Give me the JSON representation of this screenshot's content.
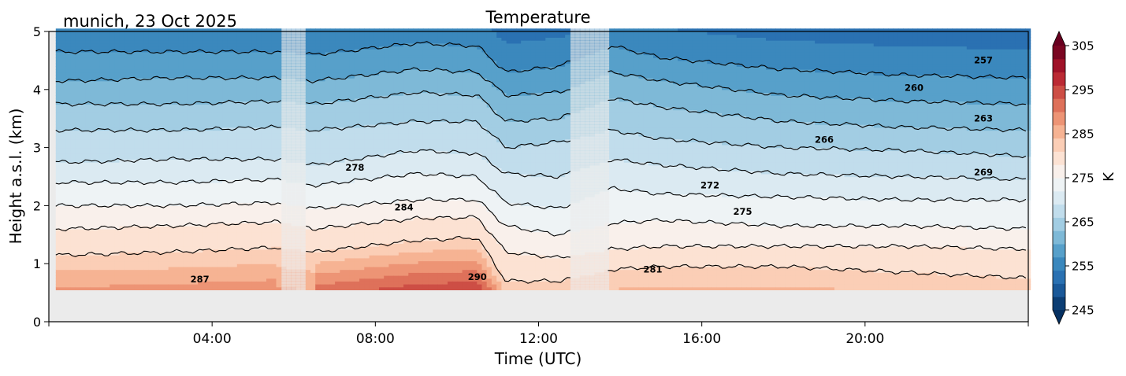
{
  "chart_data": {
    "type": "heatmap",
    "subtype": "filled-contour time-height cross section",
    "title": "Temperature",
    "subtitle": "munich, 23 Oct 2025",
    "xlabel": "Time (UTC)",
    "ylabel": "Height a.s.l. (km)",
    "x_ticks": [
      "04:00",
      "08:00",
      "12:00",
      "16:00",
      "20:00"
    ],
    "x_tick_hours": [
      4,
      8,
      12,
      16,
      20
    ],
    "xlim_hours": [
      0,
      24
    ],
    "y_ticks": [
      0,
      1,
      2,
      3,
      4,
      5
    ],
    "ylim": [
      0,
      5
    ],
    "data_bottom_km": 0.55,
    "missing_data_hours": [
      [
        5.7,
        6.3
      ],
      [
        12.8,
        13.7
      ]
    ],
    "colorbar": {
      "label": "K",
      "ticks": [
        245,
        255,
        265,
        275,
        285,
        295,
        305
      ],
      "vmin": 245,
      "vmax": 305,
      "level_step": 3,
      "colormap": "RdBu_r",
      "extend": "both"
    },
    "contour_levels": [
      257,
      260,
      263,
      266,
      269,
      272,
      275,
      278,
      281,
      284,
      287,
      290
    ],
    "contour_labels": [
      {
        "value": 257,
        "hour": 22.9,
        "km": 4.45
      },
      {
        "value": 260,
        "hour": 21.2,
        "km": 3.98
      },
      {
        "value": 263,
        "hour": 22.9,
        "km": 3.45
      },
      {
        "value": 266,
        "hour": 19.0,
        "km": 3.08
      },
      {
        "value": 269,
        "hour": 22.9,
        "km": 2.52
      },
      {
        "value": 272,
        "hour": 16.2,
        "km": 2.3
      },
      {
        "value": 275,
        "hour": 17.0,
        "km": 1.84
      },
      {
        "value": 278,
        "hour": 7.5,
        "km": 2.6
      },
      {
        "value": 281,
        "hour": 14.8,
        "km": 0.85
      },
      {
        "value": 284,
        "hour": 8.7,
        "km": 1.92
      },
      {
        "value": 287,
        "hour": 3.7,
        "km": 0.68
      },
      {
        "value": 290,
        "hour": 10.5,
        "km": 0.72
      }
    ],
    "profiles_description": "Temperature decreases with height; warmest (~290 K) below 1 km around 09-11 UTC; cooling aloft after 14 UTC (257 K near 4.5 km late in day).",
    "isotherm_heights_km": {
      "hours": [
        0.5,
        3,
        5.6,
        6.5,
        9,
        10.5,
        11.2,
        12.5,
        13.8,
        15,
        18,
        21,
        24
      ],
      "levels": {
        "281": [
          1.15,
          1.2,
          1.28,
          1.2,
          1.4,
          1.45,
          0.7,
          0.7,
          0.9,
          0.95,
          0.95,
          0.85,
          0.75
        ],
        "278": [
          1.6,
          1.65,
          1.72,
          1.6,
          1.78,
          1.8,
          1.2,
          1.1,
          1.25,
          1.3,
          1.3,
          1.3,
          1.25
        ],
        "275": [
          2.0,
          2.0,
          2.05,
          1.95,
          2.1,
          2.1,
          1.65,
          1.5,
          1.7,
          1.75,
          1.65,
          1.65,
          1.6
        ],
        "272": [
          2.4,
          2.4,
          2.45,
          2.35,
          2.55,
          2.5,
          2.05,
          1.95,
          2.3,
          2.2,
          2.15,
          2.1,
          2.1
        ],
        "269": [
          2.75,
          2.8,
          2.8,
          2.7,
          2.95,
          2.9,
          2.55,
          2.5,
          2.8,
          2.7,
          2.55,
          2.5,
          2.45
        ],
        "266": [
          3.3,
          3.3,
          3.35,
          3.3,
          3.45,
          3.45,
          3.0,
          3.1,
          3.3,
          3.15,
          3.0,
          2.95,
          2.85
        ],
        "263": [
          3.75,
          3.75,
          3.8,
          3.75,
          3.95,
          3.9,
          3.45,
          3.5,
          3.85,
          3.7,
          3.45,
          3.35,
          3.3
        ],
        "260": [
          4.15,
          4.2,
          4.2,
          4.15,
          4.35,
          4.3,
          3.9,
          3.95,
          4.3,
          4.15,
          3.9,
          3.8,
          3.75
        ],
        "257": [
          4.65,
          4.65,
          4.65,
          4.6,
          4.8,
          4.75,
          4.3,
          4.4,
          4.75,
          4.55,
          4.35,
          4.25,
          4.2
        ]
      }
    }
  }
}
